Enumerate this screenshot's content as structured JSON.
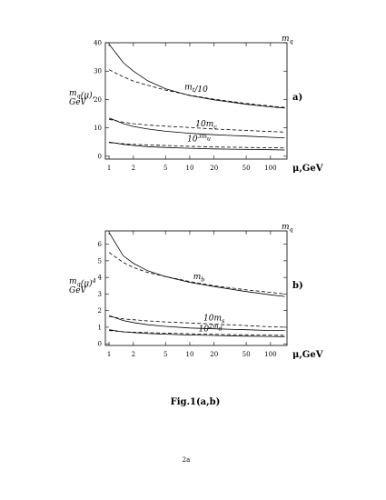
{
  "caption": "Fig.1(a,b)",
  "page_number": "2a",
  "chart_data": [
    {
      "type": "line",
      "panel_label": "a)",
      "ylabel_line1": "m_q(μ),",
      "ylabel_line2": "GeV",
      "xlabel": "μ,GeV",
      "top_right_label": "m_q",
      "x_scale": "log",
      "xlim": [
        0.9,
        160
      ],
      "ylim": [
        -1,
        40
      ],
      "x_ticks": [
        1,
        2,
        5,
        10,
        20,
        50,
        100
      ],
      "x_tick_labels": [
        "1",
        "2",
        "5",
        "10",
        "20",
        "50",
        "100"
      ],
      "y_ticks": [
        0,
        10,
        20,
        30,
        40
      ],
      "y_tick_labels": [
        "0",
        "10",
        "20",
        "30",
        "40"
      ],
      "curve_labels": [
        {
          "text": "m_t/10",
          "x": 12,
          "y": 23.5
        },
        {
          "text": "10m_c",
          "x": 16,
          "y": 10.5
        },
        {
          "text": "10^3m_u",
          "x": 13,
          "y": 5.2
        }
      ],
      "series": [
        {
          "style": "solid",
          "x": [
            1,
            1.5,
            2,
            3,
            5,
            10,
            20,
            50,
            100,
            150
          ],
          "values": [
            39.5,
            33.0,
            30.0,
            26.6,
            23.8,
            21.4,
            19.9,
            18.3,
            17.4,
            17.0
          ]
        },
        {
          "style": "dashed",
          "x": [
            1,
            1.5,
            2,
            3,
            5,
            10,
            20,
            50,
            100,
            150
          ],
          "values": [
            30.5,
            28.0,
            26.5,
            25.0,
            23.3,
            21.5,
            20.1,
            18.6,
            17.7,
            17.2
          ]
        },
        {
          "style": "solid",
          "x": [
            1,
            1.5,
            2,
            3,
            5,
            10,
            20,
            50,
            100,
            150
          ],
          "values": [
            13.5,
            11.5,
            10.5,
            9.6,
            8.8,
            8.1,
            7.6,
            7.1,
            6.7,
            6.5
          ]
        },
        {
          "style": "dashed",
          "x": [
            1,
            1.5,
            2,
            3,
            5,
            10,
            20,
            50,
            100,
            150
          ],
          "values": [
            13.0,
            12.0,
            11.5,
            11.0,
            10.6,
            10.1,
            9.6,
            9.1,
            8.7,
            8.5
          ]
        },
        {
          "style": "solid",
          "x": [
            1,
            1.5,
            2,
            3,
            5,
            10,
            20,
            50,
            100,
            150
          ],
          "values": [
            5.0,
            4.2,
            3.8,
            3.4,
            3.1,
            2.8,
            2.6,
            2.4,
            2.3,
            2.2
          ]
        },
        {
          "style": "dashed",
          "x": [
            1,
            1.5,
            2,
            3,
            5,
            10,
            20,
            50,
            100,
            150
          ],
          "values": [
            4.8,
            4.4,
            4.2,
            4.0,
            3.8,
            3.5,
            3.3,
            3.1,
            3.0,
            2.9
          ]
        }
      ]
    },
    {
      "type": "line",
      "panel_label": "b)",
      "ylabel_line1": "m_q(μ)^4",
      "ylabel_line2": "GeV",
      "xlabel": "μ,GeV",
      "top_right_label": "m_q",
      "x_scale": "log",
      "xlim": [
        0.9,
        160
      ],
      "ylim": [
        -0.1,
        6.8
      ],
      "x_ticks": [
        1,
        2,
        5,
        10,
        20,
        50,
        100
      ],
      "x_tick_labels": [
        "1",
        "2",
        "5",
        "10",
        "20",
        "50",
        "100"
      ],
      "y_ticks": [
        0,
        1,
        2,
        3,
        4,
        5,
        6
      ],
      "y_tick_labels": [
        "0",
        "1",
        "2",
        "3",
        "4",
        "5",
        "6"
      ],
      "curve_labels": [
        {
          "text": "m_b",
          "x": 13,
          "y": 3.9
        },
        {
          "text": "10m_s",
          "x": 20,
          "y": 1.4
        },
        {
          "text": "10^2m_d",
          "x": 18,
          "y": 0.75
        }
      ],
      "series": [
        {
          "style": "solid",
          "x": [
            1,
            1.5,
            2,
            3,
            5,
            10,
            20,
            50,
            100,
            150
          ],
          "values": [
            6.7,
            5.3,
            4.85,
            4.4,
            4.05,
            3.7,
            3.45,
            3.15,
            2.95,
            2.85
          ]
        },
        {
          "style": "dashed",
          "x": [
            1,
            1.5,
            2,
            3,
            5,
            10,
            20,
            50,
            100,
            150
          ],
          "values": [
            5.5,
            4.9,
            4.6,
            4.3,
            4.05,
            3.75,
            3.5,
            3.25,
            3.1,
            3.0
          ]
        },
        {
          "style": "solid",
          "x": [
            1,
            1.5,
            2,
            3,
            5,
            10,
            20,
            50,
            100,
            150
          ],
          "values": [
            1.7,
            1.4,
            1.28,
            1.15,
            1.05,
            0.95,
            0.9,
            0.85,
            0.8,
            0.8
          ]
        },
        {
          "style": "dashed",
          "x": [
            1,
            1.5,
            2,
            3,
            5,
            10,
            20,
            50,
            100,
            150
          ],
          "values": [
            1.65,
            1.5,
            1.45,
            1.38,
            1.32,
            1.25,
            1.18,
            1.1,
            1.02,
            1.0
          ]
        },
        {
          "style": "solid",
          "x": [
            1,
            1.5,
            2,
            3,
            5,
            10,
            20,
            50,
            100,
            150
          ],
          "values": [
            0.85,
            0.72,
            0.67,
            0.62,
            0.58,
            0.53,
            0.5,
            0.46,
            0.44,
            0.43
          ]
        },
        {
          "style": "dashed",
          "x": [
            1,
            1.5,
            2,
            3,
            5,
            10,
            20,
            50,
            100,
            150
          ],
          "values": [
            0.8,
            0.72,
            0.7,
            0.67,
            0.64,
            0.6,
            0.57,
            0.54,
            0.52,
            0.51
          ]
        }
      ]
    }
  ]
}
